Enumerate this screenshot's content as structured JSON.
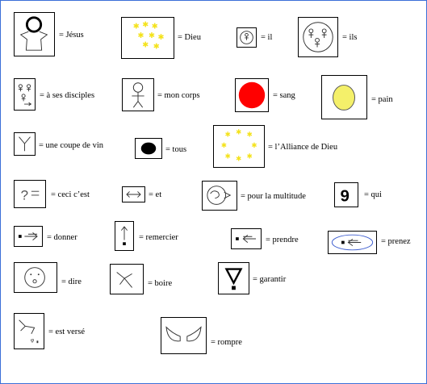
{
  "legend": {
    "jesus": "= Jésus",
    "dieu": "= Dieu",
    "il": "= il",
    "ils": "= ils",
    "disciples": "= à ses disciples",
    "corps": "= mon corps",
    "sang": "= sang",
    "pain": "= pain",
    "coupe": "= une coupe de vin",
    "tous": "= tous",
    "alliance": "= l’Alliance de Dieu",
    "ceci": "= ceci c’est",
    "et": "= et",
    "multitude": "= pour la multitude",
    "qui": "= qui",
    "donner": "= donner",
    "remercier": "= remercier",
    "prendre": "= prendre",
    "prenez": "= prenez",
    "dire": "= dire",
    "boire": "= boire",
    "garantir": "= garantir",
    "verse": "= est versé",
    "rompre": "= rompre"
  },
  "colors": {
    "border": "#3a6fd8",
    "blood": "#ff0000",
    "bread": "#f4f06a",
    "star": "#f4e21a",
    "prenez_ellipse": "#3f5fd0"
  }
}
